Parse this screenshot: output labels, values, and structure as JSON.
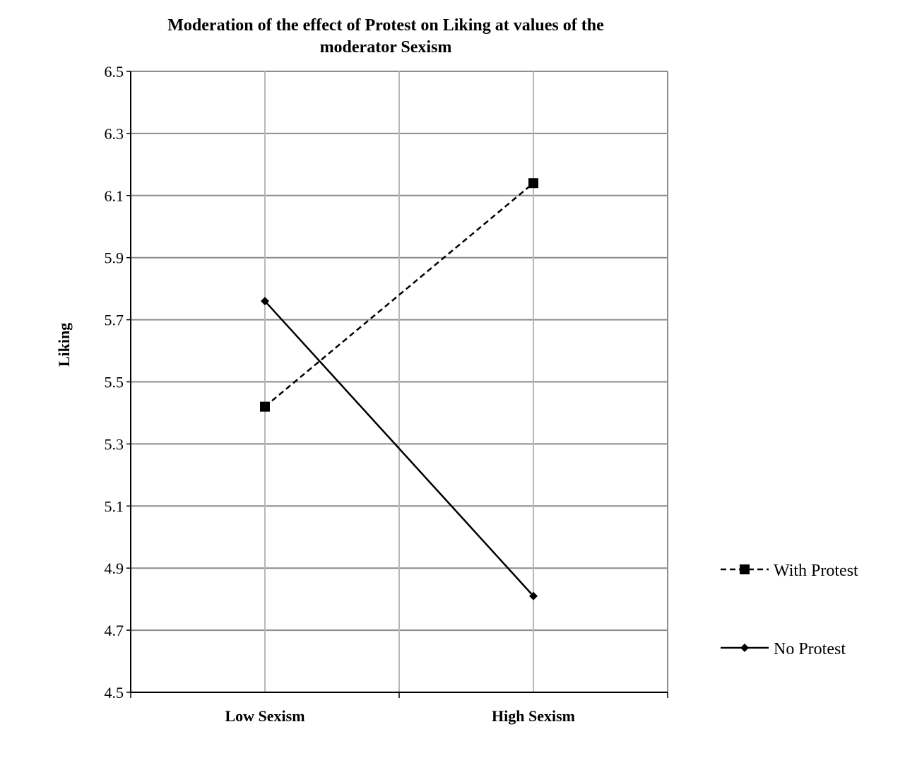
{
  "chart_data": {
    "type": "line",
    "title_lines": [
      "Moderation of the effect of Protest on Liking at values of the",
      "moderator Sexism"
    ],
    "xlabel": "",
    "ylabel": "Liking",
    "categories": [
      "Low Sexism",
      "High Sexism"
    ],
    "ylim": [
      4.5,
      6.5
    ],
    "yticks": [
      "4.5",
      "4.7",
      "4.9",
      "5.1",
      "5.3",
      "5.5",
      "5.7",
      "5.9",
      "6.1",
      "6.3",
      "6.5"
    ],
    "grid": true,
    "legend_position": "right",
    "series": [
      {
        "name": "With Protest",
        "values": [
          5.42,
          6.14
        ],
        "line_style": "dashed",
        "marker": "square",
        "color": "#000000"
      },
      {
        "name": "No Protest",
        "values": [
          5.76,
          4.81
        ],
        "line_style": "solid",
        "marker": "diamond",
        "color": "#000000"
      }
    ]
  }
}
